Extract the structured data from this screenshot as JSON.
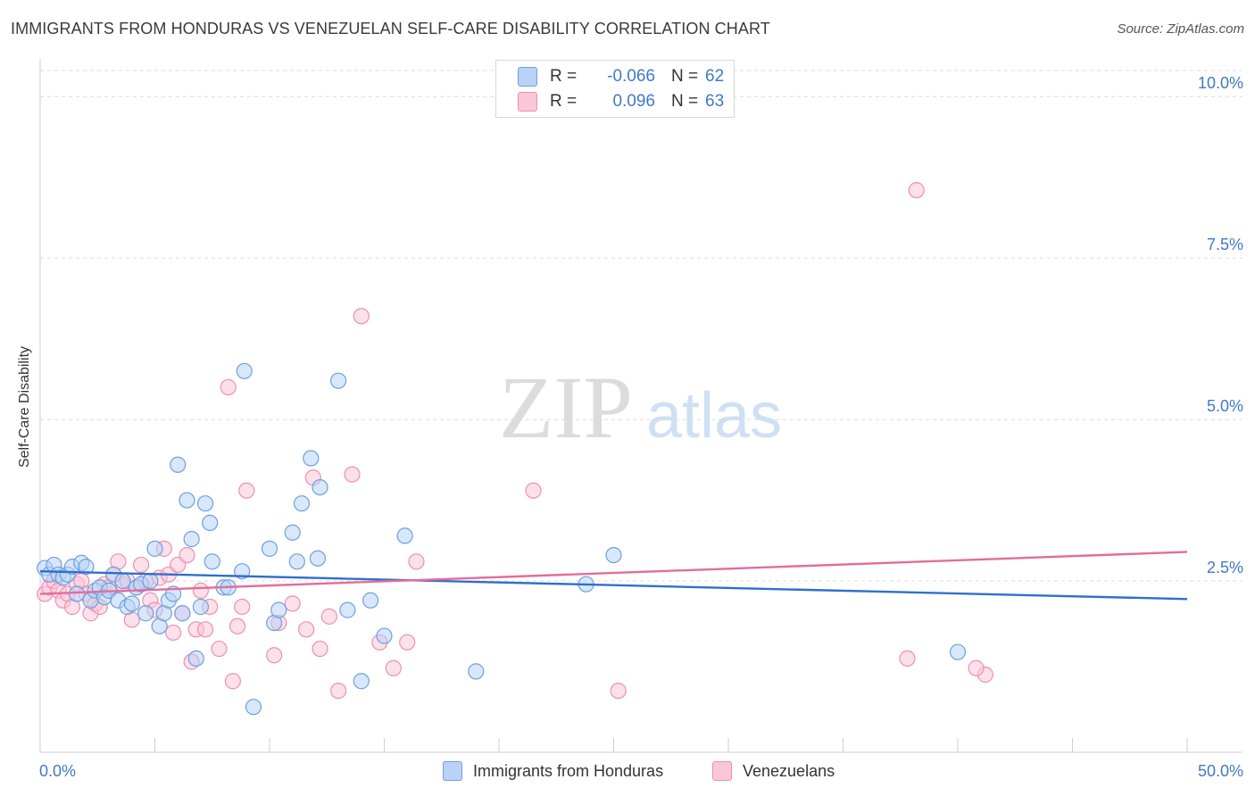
{
  "title": "IMMIGRANTS FROM HONDURAS VS VENEZUELAN SELF-CARE DISABILITY CORRELATION CHART",
  "source": "Source: ZipAtlas.com",
  "watermark": {
    "zip": "ZIP",
    "atlas": "atlas"
  },
  "legend": {
    "r_label": "R =",
    "n_label": "N =",
    "rows": [
      {
        "r": "-0.066",
        "n": "62",
        "swatch_fill": "#b8d3f5",
        "swatch_stroke": "#6e9fe0"
      },
      {
        "r": "0.096",
        "n": "63",
        "swatch_fill": "#f9c7d8",
        "swatch_stroke": "#ee8fb0"
      }
    ]
  },
  "bottom_legend": [
    "Immigrants from Honduras",
    "Venezuelans"
  ],
  "chart_data": {
    "type": "scatter",
    "title": "IMMIGRANTS FROM HONDURAS VS VENEZUELAN SELF-CARE DISABILITY CORRELATION CHART",
    "xlabel": "",
    "ylabel": "Self-Care Disability",
    "xlim": [
      0,
      50
    ],
    "ylim": [
      0,
      10.5
    ],
    "x_tick_labels": [
      "0.0%",
      "50.0%"
    ],
    "y_ticks": [
      {
        "value": 2.5,
        "label": "2.5%"
      },
      {
        "value": 5.0,
        "label": "5.0%"
      },
      {
        "value": 7.5,
        "label": "7.5%"
      },
      {
        "value": 10.0,
        "label": "10.0%"
      }
    ],
    "grid": "horizontal dashed",
    "series": [
      {
        "name": "Immigrants from Honduras",
        "color": "#6e9fe0",
        "fill": "#b8d3f5",
        "line_color": "#2f6fce",
        "trend": {
          "x0": 0,
          "y0": 2.65,
          "x1": 50,
          "y1": 2.22
        },
        "points": [
          [
            0.2,
            2.7
          ],
          [
            0.4,
            2.6
          ],
          [
            0.6,
            2.75
          ],
          [
            0.8,
            2.6
          ],
          [
            1.0,
            2.55
          ],
          [
            1.2,
            2.6
          ],
          [
            1.4,
            2.72
          ],
          [
            1.6,
            2.3
          ],
          [
            1.8,
            2.78
          ],
          [
            2.0,
            2.72
          ],
          [
            2.2,
            2.2
          ],
          [
            2.4,
            2.35
          ],
          [
            2.6,
            2.4
          ],
          [
            2.8,
            2.25
          ],
          [
            3.0,
            2.35
          ],
          [
            3.2,
            2.6
          ],
          [
            3.4,
            2.2
          ],
          [
            3.6,
            2.5
          ],
          [
            3.8,
            2.1
          ],
          [
            4.0,
            2.15
          ],
          [
            4.2,
            2.4
          ],
          [
            4.4,
            2.45
          ],
          [
            4.6,
            2.0
          ],
          [
            4.8,
            2.5
          ],
          [
            5.0,
            3.0
          ],
          [
            5.2,
            1.8
          ],
          [
            5.4,
            2.0
          ],
          [
            5.6,
            2.2
          ],
          [
            5.8,
            2.3
          ],
          [
            6.0,
            4.3
          ],
          [
            6.2,
            2.0
          ],
          [
            6.4,
            3.75
          ],
          [
            6.6,
            3.15
          ],
          [
            6.8,
            1.3
          ],
          [
            7.0,
            2.1
          ],
          [
            7.2,
            3.7
          ],
          [
            7.4,
            3.4
          ],
          [
            7.5,
            2.8
          ],
          [
            8.0,
            2.4
          ],
          [
            8.2,
            2.4
          ],
          [
            8.8,
            2.65
          ],
          [
            8.9,
            5.75
          ],
          [
            9.3,
            0.55
          ],
          [
            10.0,
            3.0
          ],
          [
            10.2,
            1.85
          ],
          [
            10.4,
            2.05
          ],
          [
            11.0,
            3.25
          ],
          [
            11.2,
            2.8
          ],
          [
            11.4,
            3.7
          ],
          [
            11.8,
            4.4
          ],
          [
            12.1,
            2.85
          ],
          [
            12.2,
            3.95
          ],
          [
            13.0,
            5.6
          ],
          [
            13.4,
            2.05
          ],
          [
            14.0,
            0.95
          ],
          [
            14.4,
            2.2
          ],
          [
            15.0,
            1.65
          ],
          [
            15.9,
            3.2
          ],
          [
            19.0,
            1.1
          ],
          [
            23.8,
            2.45
          ],
          [
            25.0,
            2.9
          ],
          [
            40.0,
            1.4
          ]
        ]
      },
      {
        "name": "Venezuelans",
        "color": "#ee8fb0",
        "fill": "#f9c7d8",
        "line_color": "#e56c9a",
        "trend": {
          "x0": 0,
          "y0": 2.3,
          "x1": 50,
          "y1": 2.95
        },
        "points": [
          [
            0.2,
            2.3
          ],
          [
            0.4,
            2.4
          ],
          [
            0.6,
            2.5
          ],
          [
            0.8,
            2.35
          ],
          [
            1.0,
            2.2
          ],
          [
            1.2,
            2.3
          ],
          [
            1.4,
            2.1
          ],
          [
            1.6,
            2.45
          ],
          [
            1.8,
            2.5
          ],
          [
            2.0,
            2.3
          ],
          [
            2.2,
            2.0
          ],
          [
            2.4,
            2.15
          ],
          [
            2.6,
            2.1
          ],
          [
            2.8,
            2.45
          ],
          [
            3.0,
            2.4
          ],
          [
            3.2,
            2.6
          ],
          [
            3.4,
            2.8
          ],
          [
            3.6,
            2.45
          ],
          [
            3.8,
            2.5
          ],
          [
            4.0,
            1.9
          ],
          [
            4.2,
            2.4
          ],
          [
            4.4,
            2.75
          ],
          [
            4.6,
            2.5
          ],
          [
            4.8,
            2.2
          ],
          [
            5.0,
            2.05
          ],
          [
            5.2,
            2.55
          ],
          [
            5.4,
            3.0
          ],
          [
            5.6,
            2.6
          ],
          [
            5.8,
            1.7
          ],
          [
            6.0,
            2.75
          ],
          [
            6.2,
            2.0
          ],
          [
            6.4,
            2.9
          ],
          [
            6.6,
            1.25
          ],
          [
            6.8,
            1.75
          ],
          [
            7.0,
            2.35
          ],
          [
            7.2,
            1.75
          ],
          [
            7.4,
            2.1
          ],
          [
            7.8,
            1.45
          ],
          [
            8.2,
            5.5
          ],
          [
            8.4,
            0.95
          ],
          [
            8.6,
            1.8
          ],
          [
            8.8,
            2.1
          ],
          [
            9.0,
            3.9
          ],
          [
            10.2,
            1.35
          ],
          [
            10.4,
            1.85
          ],
          [
            11.0,
            2.15
          ],
          [
            11.6,
            1.75
          ],
          [
            11.9,
            4.1
          ],
          [
            12.2,
            1.45
          ],
          [
            12.6,
            1.95
          ],
          [
            13.0,
            0.8
          ],
          [
            13.6,
            4.15
          ],
          [
            14.0,
            6.6
          ],
          [
            14.8,
            1.55
          ],
          [
            15.4,
            1.15
          ],
          [
            16.0,
            1.55
          ],
          [
            16.4,
            2.8
          ],
          [
            21.5,
            3.9
          ],
          [
            25.2,
            0.8
          ],
          [
            37.8,
            1.3
          ],
          [
            38.2,
            8.55
          ],
          [
            41.2,
            1.05
          ],
          [
            40.8,
            1.15
          ]
        ]
      }
    ]
  }
}
